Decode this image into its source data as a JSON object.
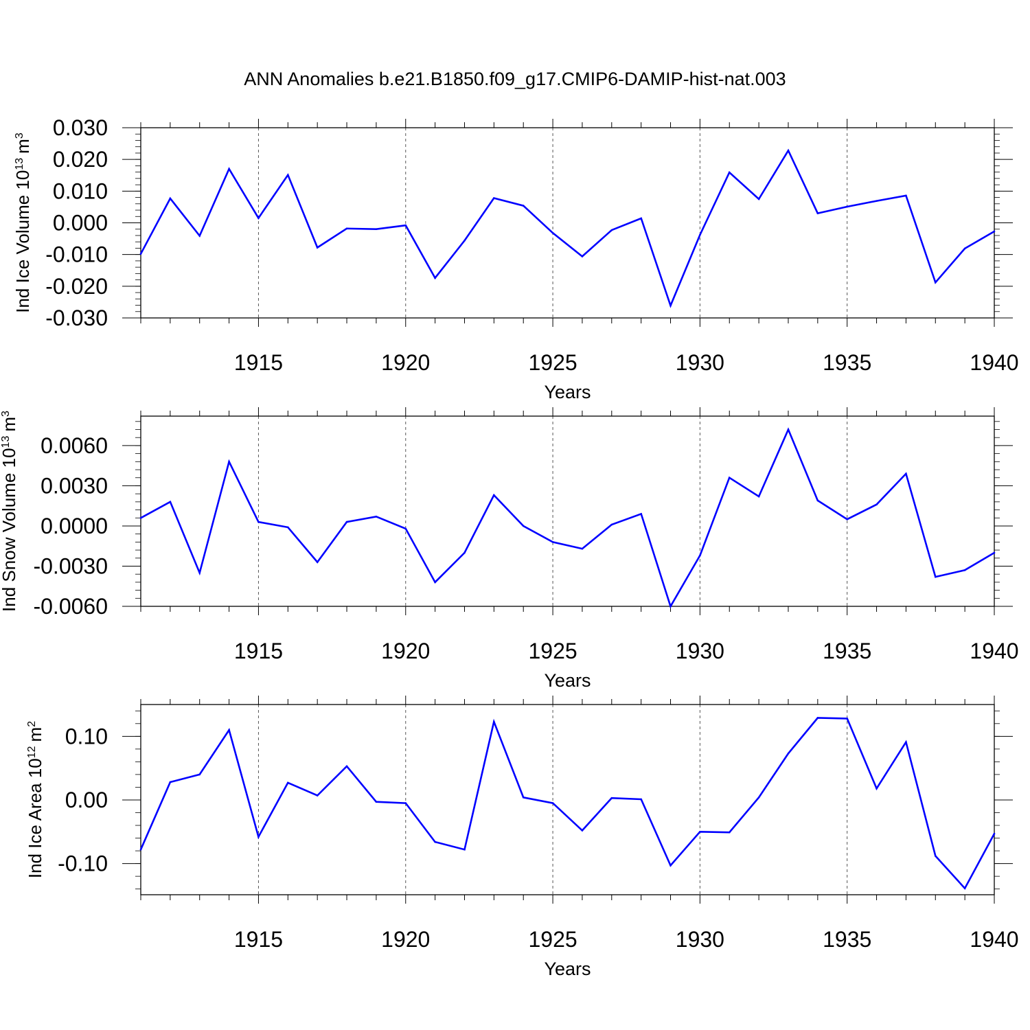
{
  "title": "ANN Anomalies b.e21.B1850.f09_g17.CMIP6-DAMIP-hist-nat.003",
  "line_color": "#0000ff",
  "chart_data": [
    {
      "type": "line",
      "xlabel": "Years",
      "ylabel_main": "Ind Ice Volume 10",
      "ylabel_exp": "13",
      "ylabel_unit": "m",
      "ylabel_unit_exp": "3",
      "xlim": [
        1911,
        1940
      ],
      "ylim": [
        -0.03,
        0.03
      ],
      "x_ticks": [
        1915,
        1920,
        1925,
        1930,
        1935,
        1940
      ],
      "y_ticks": [
        -0.03,
        -0.02,
        -0.01,
        0.0,
        0.01,
        0.02,
        0.03
      ],
      "y_tick_labels": [
        "-0.030",
        "-0.020",
        "-0.010",
        "0.000",
        "0.010",
        "0.020",
        "0.030"
      ],
      "grid": "dashed vertical at labeled years",
      "x": [
        1911,
        1912,
        1913,
        1914,
        1915,
        1916,
        1917,
        1918,
        1919,
        1920,
        1921,
        1922,
        1923,
        1924,
        1925,
        1926,
        1927,
        1928,
        1929,
        1930,
        1931,
        1932,
        1933,
        1934,
        1935,
        1936,
        1937,
        1938,
        1939,
        1940
      ],
      "y": [
        -0.0098,
        0.0077,
        -0.0041,
        0.017,
        0.0015,
        0.0151,
        -0.0078,
        -0.0018,
        -0.002,
        -0.0008,
        -0.0174,
        -0.0056,
        0.0078,
        0.0054,
        -0.0032,
        -0.0106,
        -0.0023,
        0.0014,
        -0.0261,
        -0.0038,
        0.0159,
        0.0075,
        0.0228,
        0.003,
        0.0051,
        0.0069,
        0.0086,
        -0.0188,
        -0.0081,
        -0.0027
      ]
    },
    {
      "type": "line",
      "xlabel": "Years",
      "ylabel_main": "Ind Snow Volume 10",
      "ylabel_exp": "13",
      "ylabel_unit": "m",
      "ylabel_unit_exp": "3",
      "xlim": [
        1911,
        1940
      ],
      "ylim": [
        -0.006,
        0.0082
      ],
      "x_ticks": [
        1915,
        1920,
        1925,
        1930,
        1935,
        1940
      ],
      "y_ticks": [
        -0.006,
        -0.003,
        0.0,
        0.003,
        0.006
      ],
      "y_tick_labels": [
        "-0.0060",
        "-0.0030",
        "0.0000",
        "0.0030",
        "0.0060"
      ],
      "grid": "dashed vertical at labeled years",
      "x": [
        1911,
        1912,
        1913,
        1914,
        1915,
        1916,
        1917,
        1918,
        1919,
        1920,
        1921,
        1922,
        1923,
        1924,
        1925,
        1926,
        1927,
        1928,
        1929,
        1930,
        1931,
        1932,
        1933,
        1934,
        1935,
        1936,
        1937,
        1938,
        1939,
        1940
      ],
      "y": [
        0.0006,
        0.0018,
        -0.0035,
        0.0048,
        0.0003,
        -0.0001,
        -0.0027,
        0.0003,
        0.0007,
        -0.0002,
        -0.0042,
        -0.002,
        0.0023,
        0.0,
        -0.0012,
        -0.0017,
        0.0001,
        0.0009,
        -0.006,
        -0.0022,
        0.0036,
        0.0022,
        0.0072,
        0.0019,
        0.0005,
        0.0016,
        0.0039,
        -0.0038,
        -0.0033,
        -0.002
      ]
    },
    {
      "type": "line",
      "xlabel": "Years",
      "ylabel_main": "Ind Ice Area 10",
      "ylabel_exp": "12",
      "ylabel_unit": "m",
      "ylabel_unit_exp": "2",
      "xlim": [
        1911,
        1940
      ],
      "ylim": [
        -0.149,
        0.15
      ],
      "x_ticks": [
        1915,
        1920,
        1925,
        1930,
        1935,
        1940
      ],
      "y_ticks": [
        -0.1,
        0.0,
        0.1
      ],
      "y_tick_labels": [
        "-0.10",
        "0.00",
        "0.10"
      ],
      "grid": "dashed vertical at labeled years",
      "x": [
        1911,
        1912,
        1913,
        1914,
        1915,
        1916,
        1917,
        1918,
        1919,
        1920,
        1921,
        1922,
        1923,
        1924,
        1925,
        1926,
        1927,
        1928,
        1929,
        1930,
        1931,
        1932,
        1933,
        1934,
        1935,
        1936,
        1937,
        1938,
        1939,
        1940
      ],
      "y": [
        -0.078,
        0.028,
        0.04,
        0.11,
        -0.058,
        0.027,
        0.007,
        0.053,
        -0.003,
        -0.005,
        -0.066,
        -0.078,
        0.123,
        0.004,
        -0.005,
        -0.048,
        0.003,
        0.001,
        -0.103,
        -0.05,
        -0.051,
        0.004,
        0.073,
        0.129,
        0.128,
        0.018,
        0.091,
        -0.088,
        -0.139,
        -0.053
      ]
    }
  ]
}
